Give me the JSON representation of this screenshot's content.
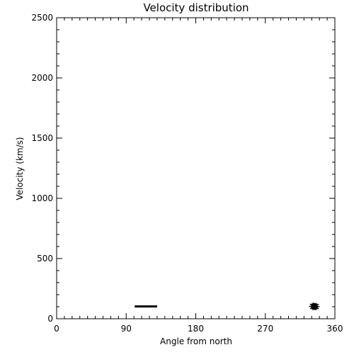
{
  "chart_data": {
    "type": "scatter",
    "title": "Velocity distribution",
    "xlabel": "Angle from north",
    "ylabel": "Velocity (km/s)",
    "xlim": [
      0,
      360
    ],
    "ylim": [
      0,
      2500
    ],
    "xticks": [
      0,
      90,
      180,
      270,
      360
    ],
    "yticks": [
      0,
      500,
      1000,
      1500,
      2000,
      2500
    ],
    "x_minor_step": 10,
    "y_minor_step": 100,
    "grid": false,
    "series": [
      {
        "marker": "horizontal-bar",
        "x": [
          101,
          130
        ],
        "y": [
          102,
          102
        ],
        "color": "#000000"
      },
      {
        "marker": "asterisk",
        "x": [
          331,
          332,
          333,
          334,
          335,
          336
        ],
        "y": [
          102,
          104,
          101,
          103,
          100,
          102
        ],
        "color": "#000000"
      }
    ]
  }
}
